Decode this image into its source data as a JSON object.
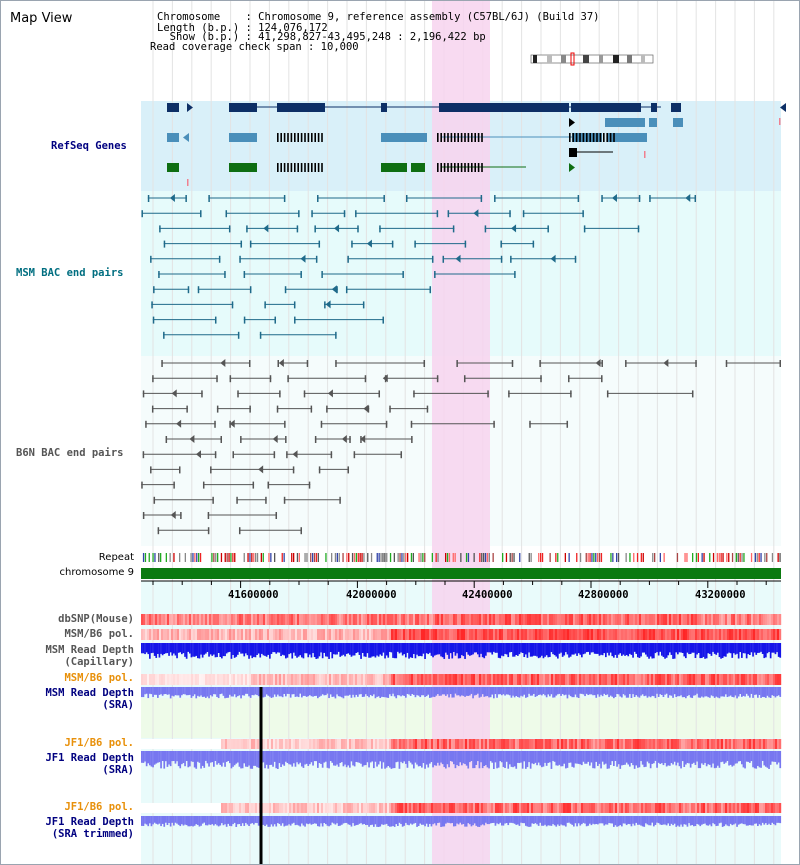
{
  "header": {
    "title": "Map View",
    "lines": [
      "Chromosome    : Chromosome 9, reference assembly (C57BL/6J) (Build 37)",
      "Length (b.p.) : 124,076,172",
      "  Show (b.p.) : 41,298,827-43,495,248 : 2,196,422 bp",
      "Read coverage check span : 10,000"
    ]
  },
  "tracks": {
    "refseq": "RefSeq Genes",
    "msm_bac": "MSM BAC end pairs",
    "b6n_bac": "B6N BAC end pairs",
    "repeat": "Repeat",
    "chromosome": "chromosome 9",
    "dbsnp": "dbSNP(Mouse)",
    "msm_b6_pol": "MSM/B6 pol.",
    "msm_depth_cap_1": "MSM Read Depth",
    "msm_depth_cap_2": "(Capillary)",
    "msm_b6_pol2": "MSM/B6 pol.",
    "msm_depth_sra_1": "MSM Read Depth",
    "msm_depth_sra_2": "(SRA)",
    "jf1_b6_pol": "JF1/B6 pol.",
    "jf1_depth_sra_1": "JF1 Read Depth",
    "jf1_depth_sra_2": "(SRA)",
    "jf1_b6_pol2": "JF1/B6 pol.",
    "jf1_depth_trim_1": "JF1 Read Depth",
    "jf1_depth_trim_2": "(SRA trimmed)"
  },
  "axis": {
    "ticks": [
      "41600000",
      "42000000",
      "42400000",
      "42800000",
      "43200000"
    ]
  },
  "colors": {
    "refseq_bg": "#d9f0f9",
    "bac_bg": "#e6fbfb",
    "highlight": "#f7d3ef",
    "gene_dark": "#0d2f66",
    "gene_mid": "#4a8fba",
    "gene_green": "#0e6e12",
    "msm_link": "#1f6a8a",
    "b6n_link": "#555555",
    "depth_blue": "#1515e8",
    "depth_light": "#7777f0",
    "pol_red": "#e82020",
    "label_navy": "#000080",
    "label_teal": "#006e80",
    "label_gray": "#555555",
    "label_orange": "#e8900a"
  }
}
